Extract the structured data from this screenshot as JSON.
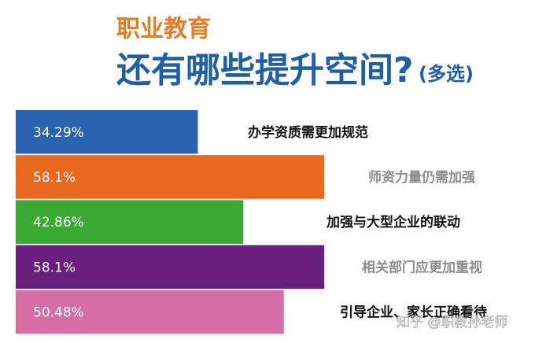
{
  "chart_data": {
    "type": "hbar",
    "title": "职业教育",
    "title_color": "#ec7a22",
    "subtitle": "还有哪些提升空间?",
    "subtitle_note": "(多选)",
    "subtitle_color": "#1f5fa8",
    "categories": [
      "办学资质需更加规范",
      "师资力量仍需加强",
      "加强与大型企业的联动",
      "相关部门应更加重视",
      "引导企业、家长正确看待"
    ],
    "category_colors": [
      "#111111",
      "#8c8c8c",
      "#111111",
      "#8c8c8c",
      "#111111"
    ],
    "values": [
      34.29,
      58.1,
      42.86,
      58.1,
      50.48
    ],
    "value_labels": [
      "34.29%",
      "58.1%",
      "42.86%",
      "58.1%",
      "50.48%"
    ],
    "colors": [
      "#2a64b0",
      "#e8691e",
      "#3aaa35",
      "#6a1f7e",
      "#d56ea4"
    ],
    "watermark": "知乎 @职教孙老师"
  }
}
